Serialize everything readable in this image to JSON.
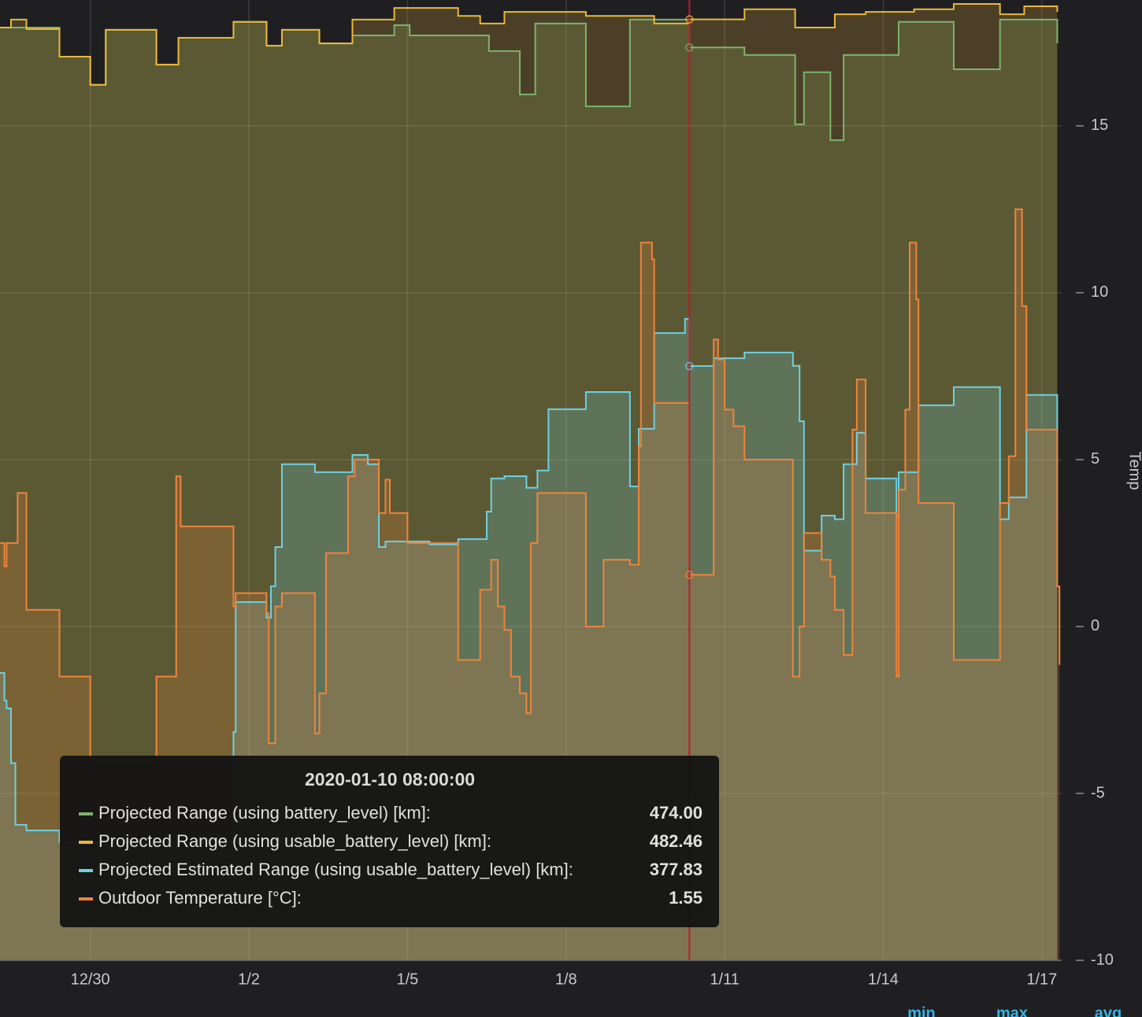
{
  "chart_data": {
    "type": "line",
    "y_axis_label": "Temp",
    "xlim": [
      "2019-12-28 07:00",
      "2020-01-17 09:00"
    ],
    "xticks": [
      {
        "value": "2019-12-30",
        "label": "12/30"
      },
      {
        "value": "2020-01-02",
        "label": "1/2"
      },
      {
        "value": "2020-01-05",
        "label": "1/5"
      },
      {
        "value": "2020-01-08",
        "label": "1/8"
      },
      {
        "value": "2020-01-11",
        "label": "1/11"
      },
      {
        "value": "2020-01-14",
        "label": "1/14"
      },
      {
        "value": "2020-01-17",
        "label": "1/17"
      }
    ],
    "ylim": [
      -10,
      18.77
    ],
    "yticks": [
      15,
      10,
      5,
      0,
      -5,
      -10
    ],
    "y2lim": [
      198.5,
      488.3
    ],
    "grid": true,
    "step": true,
    "series": [
      {
        "name": "Projected Range (using battery_level) [km]:",
        "color": "#7eb26d",
        "axis": "y2",
        "x": [
          "2019-12-28 07:00",
          "2019-12-29 10:00",
          "2019-12-30 00:00",
          "2019-12-30 07:00",
          "2019-12-31 06:00",
          "2019-12-31 16:00",
          "2020-01-01 17:00",
          "2020-01-02 08:00",
          "2020-01-02 15:00",
          "2020-01-03 08:00",
          "2020-01-03 23:00",
          "2020-01-04 18:00",
          "2020-01-05 01:00",
          "2020-01-06 13:00",
          "2020-01-07 03:00",
          "2020-01-07 10:00",
          "2020-01-08 09:00",
          "2020-01-09 05:00",
          "2020-01-10 08:00",
          "2020-01-11 09:00",
          "2020-01-12 08:00",
          "2020-01-12 12:00",
          "2020-01-13 00:00",
          "2020-01-13 06:00",
          "2020-01-14 07:00",
          "2020-01-15 08:00",
          "2020-01-16 05:00",
          "2020-01-17 07:00"
        ],
        "values": [
          480.0,
          471.2,
          462.7,
          479.3,
          468.8,
          476.9,
          481.7,
          474.5,
          479.3,
          475.2,
          477.6,
          480.7,
          477.6,
          472.9,
          459.8,
          481.2,
          456.2,
          482.4,
          474.0,
          471.7,
          450.8,
          466.5,
          446.0,
          471.7,
          481.7,
          467.4,
          482.4,
          475.2
        ]
      },
      {
        "name": "Projected Range (using usable_battery_level) [km]:",
        "color": "#eab839",
        "axis": "y2",
        "x": [
          "2019-12-28 07:00",
          "2019-12-28 12:00",
          "2019-12-28 19:00",
          "2019-12-29 10:00",
          "2019-12-30 00:00",
          "2019-12-30 07:00",
          "2019-12-31 06:00",
          "2019-12-31 16:00",
          "2020-01-01 17:00",
          "2020-01-02 08:00",
          "2020-01-02 15:00",
          "2020-01-03 08:00",
          "2020-01-03 23:00",
          "2020-01-04 18:00",
          "2020-01-05 23:00",
          "2020-01-06 09:00",
          "2020-01-06 20:00",
          "2020-01-07 17:00",
          "2020-01-08 09:00",
          "2020-01-09 05:00",
          "2020-01-09 16:00",
          "2020-01-10 08:00",
          "2020-01-11 09:00",
          "2020-01-12 08:00",
          "2020-01-13 02:00",
          "2020-01-13 16:00",
          "2020-01-14 14:00",
          "2020-01-15 08:00",
          "2020-01-16 05:00",
          "2020-01-16 16:00",
          "2020-01-17 07:00"
        ],
        "values": [
          480.0,
          482.4,
          479.5,
          471.2,
          462.7,
          479.3,
          468.8,
          476.9,
          481.7,
          474.5,
          479.3,
          475.2,
          482.4,
          485.9,
          483.5,
          481.2,
          484.7,
          484.7,
          483.5,
          483.5,
          481.2,
          482.46,
          485.5,
          480.0,
          484.0,
          484.7,
          485.5,
          487.1,
          484.0,
          486.4,
          484.7
        ]
      },
      {
        "name": "Projected Estimated Range (using usable_battery_level) [km]:",
        "color": "#6ed0e0",
        "axis": "y2",
        "x": [
          "2019-12-28 07:00",
          "2019-12-28 09:00",
          "2019-12-28 10:00",
          "2019-12-28 12:00",
          "2019-12-28 14:00",
          "2019-12-28 19:00",
          "2019-12-29 10:00",
          "2020-01-01 17:00",
          "2020-01-01 18:00",
          "2020-01-02 08:00",
          "2020-01-02 10:00",
          "2020-01-02 12:00",
          "2020-01-02 15:00",
          "2020-01-03 06:00",
          "2020-01-03 23:00",
          "2020-01-04 06:00",
          "2020-01-04 11:00",
          "2020-01-04 14:00",
          "2020-01-05 00:00",
          "2020-01-05 10:00",
          "2020-01-05 23:00",
          "2020-01-06 12:00",
          "2020-01-06 14:00",
          "2020-01-06 20:00",
          "2020-01-07 06:00",
          "2020-01-07 11:00",
          "2020-01-07 16:00",
          "2020-01-08 09:00",
          "2020-01-09 05:00",
          "2020-01-09 09:00",
          "2020-01-09 16:00",
          "2020-01-10 06:00",
          "2020-01-10 08:00",
          "2020-01-10 19:00",
          "2020-01-11 09:00",
          "2020-01-12 07:00",
          "2020-01-12 10:00",
          "2020-01-12 12:00",
          "2020-01-12 20:00",
          "2020-01-13 02:00",
          "2020-01-13 06:00",
          "2020-01-13 12:00",
          "2020-01-13 16:00",
          "2020-01-14 06:00",
          "2020-01-14 07:00",
          "2020-01-14 16:00",
          "2020-01-15 08:00",
          "2020-01-16 05:00",
          "2020-01-16 09:00",
          "2020-01-16 17:00",
          "2020-01-17 07:00"
        ],
        "values": [
          285.2,
          276.9,
          274.5,
          258.0,
          239.4,
          237.7,
          234.2,
          267.4,
          306.6,
          301.9,
          311.4,
          323.2,
          348.2,
          345.8,
          351.0,
          348.2,
          323.2,
          324.9,
          324.9,
          324.0,
          325.6,
          333.9,
          343.9,
          344.6,
          341.1,
          346.3,
          364.8,
          370.0,
          341.5,
          358.9,
          387.8,
          392.1,
          377.83,
          380.2,
          381.9,
          377.9,
          361.2,
          322.1,
          332.7,
          331.6,
          348.2,
          357.7,
          343.9,
          332.7,
          345.8,
          366.0,
          371.5,
          331.6,
          338.2,
          369.1,
          332.7
        ]
      },
      {
        "name": "Outdoor Temperature [°C]:",
        "color": "#ef843c",
        "axis": "y",
        "x": [
          "2019-12-28 07:00",
          "2019-12-28 09:00",
          "2019-12-28 10:00",
          "2019-12-28 15:00",
          "2019-12-28 19:00",
          "2019-12-29 10:00",
          "2019-12-30 00:00",
          "2019-12-31 06:00",
          "2019-12-31 15:00",
          "2019-12-31 17:00",
          "2020-01-01 17:00",
          "2020-01-01 18:00",
          "2020-01-02 08:00",
          "2020-01-02 09:00",
          "2020-01-02 12:00",
          "2020-01-02 15:00",
          "2020-01-03 06:00",
          "2020-01-03 08:00",
          "2020-01-03 11:00",
          "2020-01-03 21:00",
          "2020-01-04 00:00",
          "2020-01-04 11:00",
          "2020-01-04 14:00",
          "2020-01-04 16:00",
          "2020-01-05 00:00",
          "2020-01-05 23:00",
          "2020-01-06 09:00",
          "2020-01-06 14:00",
          "2020-01-06 17:00",
          "2020-01-06 20:00",
          "2020-01-06 23:00",
          "2020-01-07 03:00",
          "2020-01-07 06:00",
          "2020-01-07 08:00",
          "2020-01-07 11:00",
          "2020-01-08 09:00",
          "2020-01-08 17:00",
          "2020-01-09 05:00",
          "2020-01-09 09:00",
          "2020-01-09 10:00",
          "2020-01-09 15:00",
          "2020-01-09 16:00",
          "2020-01-10 08:00",
          "2020-01-10 19:00",
          "2020-01-10 21:00",
          "2020-01-11 00:00",
          "2020-01-11 04:00",
          "2020-01-11 09:00",
          "2020-01-12 07:00",
          "2020-01-12 10:00",
          "2020-01-12 12:00",
          "2020-01-12 20:00",
          "2020-01-13 00:00",
          "2020-01-13 02:00",
          "2020-01-13 06:00",
          "2020-01-13 10:00",
          "2020-01-13 12:00",
          "2020-01-13 16:00",
          "2020-01-14 06:00",
          "2020-01-14 07:00",
          "2020-01-14 10:00",
          "2020-01-14 12:00",
          "2020-01-14 15:00",
          "2020-01-14 16:00",
          "2020-01-15 08:00",
          "2020-01-16 05:00",
          "2020-01-16 09:00",
          "2020-01-16 12:00",
          "2020-01-16 15:00",
          "2020-01-16 17:00",
          "2020-01-17 07:00",
          "2020-01-17 08:00"
        ],
        "values": [
          2.5,
          1.8,
          2.5,
          4.0,
          0.5,
          -1.5,
          -4,
          -1.5,
          4.5,
          3.0,
          0.6,
          1.0,
          0.4,
          -3.5,
          0.6,
          1.0,
          -3.2,
          -2.0,
          2.2,
          4.5,
          5.0,
          3.4,
          4.4,
          3.4,
          2.5,
          -1.0,
          1.1,
          2.0,
          0.6,
          -0.1,
          -1.5,
          -2.0,
          -2.6,
          2.5,
          4.0,
          0.0,
          2.0,
          1.85,
          5.4,
          11.5,
          11.0,
          6.7,
          1.55,
          8.6,
          8.0,
          6.5,
          6.0,
          5.0,
          -1.5,
          0.0,
          2.8,
          2.0,
          1.5,
          0.5,
          -0.85,
          5.9,
          7.4,
          3.4,
          -1.5,
          4.1,
          6.5,
          11.5,
          9.8,
          3.7,
          -1.0,
          3.7,
          5.1,
          12.5,
          9.6,
          5.9,
          1.2,
          -1.15
        ]
      }
    ],
    "tooltip": {
      "x": "2020-01-10 08:00:00",
      "values": [
        474,
        482.46,
        377.83,
        1.55
      ],
      "value_labels": [
        "474.00",
        "482.46",
        "377.83",
        "1.55"
      ]
    },
    "legend_columns": [
      "min",
      "max",
      "avg"
    ]
  }
}
